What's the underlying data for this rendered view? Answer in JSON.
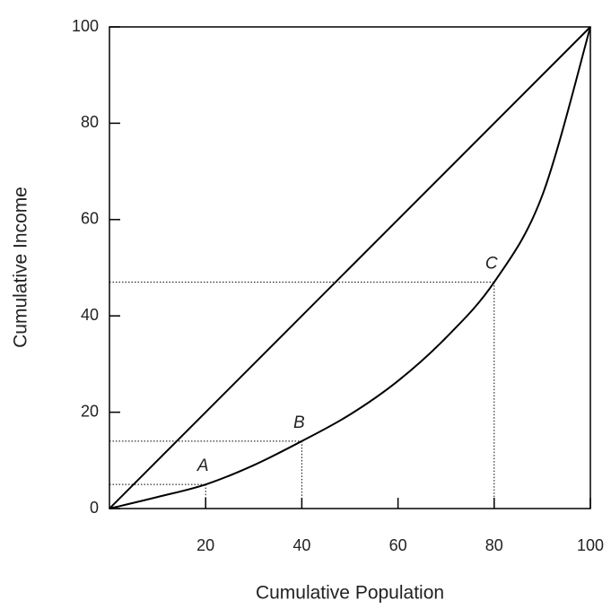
{
  "chart_data": {
    "type": "line",
    "xlabel": "Cumulative Population",
    "ylabel": "Cumulative Income",
    "xlim": [
      0,
      100
    ],
    "ylim": [
      0,
      100
    ],
    "xticks": [
      20,
      40,
      60,
      80,
      100
    ],
    "yticks": [
      0,
      20,
      40,
      60,
      80,
      100
    ],
    "series": [
      {
        "color": "#000000",
        "x": [
          0,
          100
        ],
        "values": [
          0,
          100
        ]
      },
      {
        "color": "#000000",
        "x": [
          0,
          10,
          20,
          30,
          40,
          50,
          60,
          70,
          80,
          90,
          100
        ],
        "values": [
          0,
          2.4,
          5,
          9,
          14,
          19.5,
          26.5,
          35.5,
          47,
          65,
          100
        ]
      }
    ],
    "points": [
      {
        "label": "A",
        "x": 20,
        "y": 5
      },
      {
        "label": "B",
        "x": 40,
        "y": 14
      },
      {
        "label": "C",
        "x": 80,
        "y": 47
      }
    ]
  }
}
